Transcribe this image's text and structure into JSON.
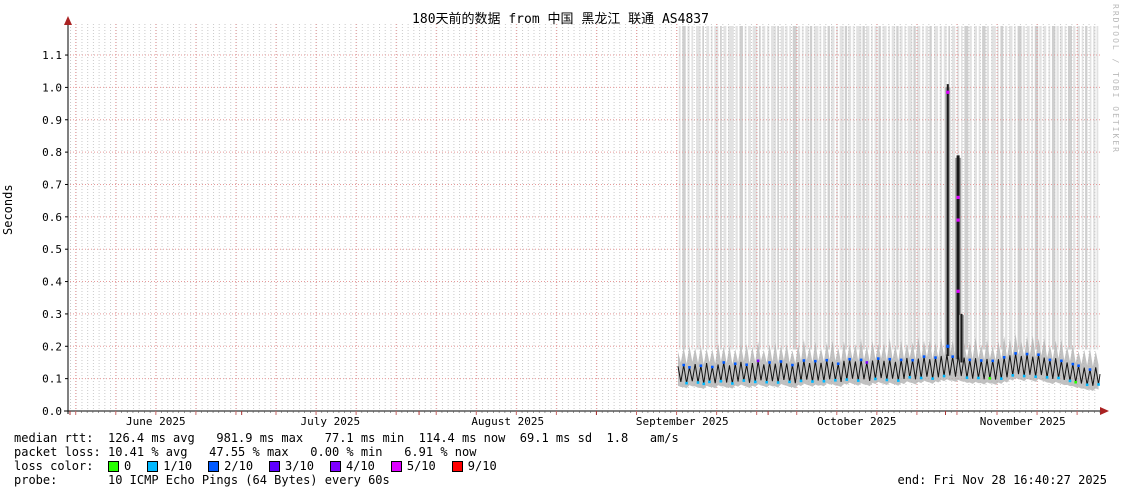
{
  "title": "180天前的数据 from 中国 黑龙江 联通 AS4837",
  "watermark": "RRDTOOL / TOBI OETIKER",
  "ylabel": "Seconds",
  "legend": {
    "median_label": "median rtt:",
    "median_stats": "126.4 ms avg   981.9 ms max   77.1 ms min  114.4 ms now  69.1 ms sd  1.8   am/s",
    "loss_label": "packet loss:",
    "loss_stats": "10.41 % avg   47.55 % max   0.00 % min   6.91 % now",
    "loss_color_label": "loss color:",
    "loss_colors": [
      {
        "color": "#26ff00",
        "label": "0"
      },
      {
        "color": "#00b8ff",
        "label": "1/10"
      },
      {
        "color": "#0059ff",
        "label": "2/10"
      },
      {
        "color": "#5e00ff",
        "label": "3/10"
      },
      {
        "color": "#7e00ff",
        "label": "4/10"
      },
      {
        "color": "#dd00ff",
        "label": "5/10"
      },
      {
        "color": "#ff0000",
        "label": "9/10"
      }
    ],
    "probe_label": "probe:",
    "probe_value": "10 ICMP Echo Pings (64 Bytes) every 60s",
    "end_label": "end: Fri Nov 28 16:40:27 2025"
  },
  "chart_data": {
    "type": "line",
    "title": "180天前的数据 from 中国 黑龙江 联通 AS4837",
    "xlabel": "",
    "ylabel": "Seconds",
    "ylim": [
      0.0,
      1.196
    ],
    "yticks": [
      0.0,
      0.1,
      0.2,
      0.3,
      0.4,
      0.5,
      0.6,
      0.7,
      0.8,
      0.9,
      1.0,
      1.1
    ],
    "grid": true,
    "stats": {
      "median_avg_ms": 126.4,
      "median_max_ms": 981.9,
      "median_min_ms": 77.1,
      "median_now_ms": 114.4,
      "sd_ms": 69.1,
      "rate_am_s": 1.8,
      "loss_avg_pct": 10.41,
      "loss_max_pct": 47.55,
      "loss_min_pct": 0.0,
      "loss_now_pct": 6.91
    },
    "x_axis": {
      "start_day": 0,
      "end_day": 180,
      "week_start_day": 1,
      "week_step": 7,
      "month_start_days": [
        0,
        30,
        61,
        92,
        122,
        153
      ],
      "months": [
        {
          "label": "June 2025",
          "mid": 15
        },
        {
          "label": "July 2025",
          "mid": 45.5
        },
        {
          "label": "August 2025",
          "mid": 76.5
        },
        {
          "label": "September 2025",
          "mid": 107
        },
        {
          "label": "October 2025",
          "mid": 137.5
        },
        {
          "label": "November 2025",
          "mid": 166.5
        }
      ]
    },
    "palette": [
      "#26ff00",
      "#00b8ff",
      "#0059ff",
      "#5e00ff",
      "#7e00ff",
      "#dd00ff",
      "#ff0000"
    ],
    "median_now_s": 0.114,
    "daily": {
      "start": 106,
      "values": [
        [
          0.138,
          0.09
        ],
        [
          0.142,
          0.086
        ],
        [
          0.135,
          0.092
        ],
        [
          0.145,
          0.088
        ],
        [
          0.14,
          0.084
        ],
        [
          0.148,
          0.09
        ],
        [
          0.136,
          0.086
        ],
        [
          0.144,
          0.092
        ],
        [
          0.15,
          0.088
        ],
        [
          0.141,
          0.085
        ],
        [
          0.146,
          0.091
        ],
        [
          0.152,
          0.094
        ],
        [
          0.143,
          0.087
        ],
        [
          0.148,
          0.09
        ],
        [
          0.155,
          0.095
        ],
        [
          0.144,
          0.089
        ],
        [
          0.15,
          0.092
        ],
        [
          0.146,
          0.088
        ],
        [
          0.153,
          0.096
        ],
        [
          0.147,
          0.09
        ],
        [
          0.142,
          0.086
        ],
        [
          0.151,
          0.093
        ],
        [
          0.156,
          0.097
        ],
        [
          0.148,
          0.091
        ],
        [
          0.154,
          0.094
        ],
        [
          0.149,
          0.092
        ],
        [
          0.157,
          0.098
        ],
        [
          0.152,
          0.095
        ],
        [
          0.146,
          0.09
        ],
        [
          0.155,
          0.097
        ],
        [
          0.16,
          0.1
        ],
        [
          0.153,
          0.094
        ],
        [
          0.158,
          0.098
        ],
        [
          0.15,
          0.093
        ],
        [
          0.156,
          0.099
        ],
        [
          0.162,
          0.102
        ],
        [
          0.155,
          0.096
        ],
        [
          0.16,
          0.1
        ],
        [
          0.152,
          0.094
        ],
        [
          0.158,
          0.099
        ],
        [
          0.164,
          0.104
        ],
        [
          0.157,
          0.098
        ],
        [
          0.162,
          0.102
        ],
        [
          0.168,
          0.106
        ],
        [
          0.16,
          0.1
        ],
        [
          0.165,
          0.104
        ],
        [
          0.17,
          0.108
        ],
        [
          0.175,
          0.11
        ],
        [
          0.168,
          0.106
        ],
        [
          0.172,
          0.108
        ],
        [
          0.165,
          0.103
        ],
        [
          0.158,
          0.1
        ],
        [
          0.163,
          0.102
        ],
        [
          0.156,
          0.098
        ],
        [
          0.161,
          0.101
        ],
        [
          0.155,
          0.097
        ],
        [
          0.16,
          0.1
        ],
        [
          0.166,
          0.104
        ],
        [
          0.172,
          0.11
        ],
        [
          0.178,
          0.114
        ],
        [
          0.17,
          0.108
        ],
        [
          0.176,
          0.112
        ],
        [
          0.168,
          0.106
        ],
        [
          0.174,
          0.111
        ],
        [
          0.165,
          0.104
        ],
        [
          0.158,
          0.099
        ],
        [
          0.163,
          0.102
        ],
        [
          0.155,
          0.096
        ],
        [
          0.15,
          0.093
        ],
        [
          0.145,
          0.089
        ],
        [
          0.14,
          0.085
        ],
        [
          0.134,
          0.081
        ],
        [
          0.128,
          0.078
        ],
        [
          0.135,
          0.082
        ]
      ]
    },
    "loss_bars": [
      [
        106.4,
        0.3
      ],
      [
        107.0,
        0.6
      ],
      [
        107.9,
        0.4
      ],
      [
        108.6,
        0.3
      ],
      [
        109.4,
        0.8
      ],
      [
        110.5,
        0.3
      ],
      [
        111.2,
        0.5
      ],
      [
        112.0,
        0.3
      ],
      [
        112.6,
        0.7
      ],
      [
        113.6,
        0.3
      ],
      [
        114.2,
        0.5
      ],
      [
        115.0,
        1.0
      ],
      [
        116.3,
        0.4
      ],
      [
        117.0,
        0.6
      ],
      [
        117.9,
        0.3
      ],
      [
        118.5,
        0.5
      ],
      [
        119.3,
        0.8
      ],
      [
        120.4,
        0.3
      ],
      [
        121.0,
        0.5
      ],
      [
        121.8,
        0.4
      ],
      [
        122.5,
        0.9
      ],
      [
        123.6,
        0.3
      ],
      [
        124.2,
        0.6
      ],
      [
        125.0,
        0.4
      ],
      [
        125.7,
        0.3
      ],
      [
        126.3,
        0.7
      ],
      [
        127.2,
        0.4
      ],
      [
        127.9,
        0.3
      ],
      [
        128.5,
        0.6
      ],
      [
        129.3,
        0.4
      ],
      [
        130.0,
        0.8
      ],
      [
        131.0,
        0.3
      ],
      [
        131.6,
        0.5
      ],
      [
        132.4,
        0.4
      ],
      [
        133.0,
        0.6
      ],
      [
        133.9,
        0.3
      ],
      [
        134.5,
        0.7
      ],
      [
        135.4,
        0.4
      ],
      [
        136.0,
        0.5
      ],
      [
        136.8,
        0.3
      ],
      [
        137.4,
        0.9
      ],
      [
        138.5,
        0.4
      ],
      [
        139.1,
        0.6
      ],
      [
        140.0,
        0.3
      ],
      [
        140.6,
        0.5
      ],
      [
        141.3,
        0.4
      ],
      [
        142.0,
        0.7
      ],
      [
        143.0,
        0.3
      ],
      [
        143.6,
        0.6
      ],
      [
        144.4,
        0.4
      ],
      [
        145.0,
        0.5
      ],
      [
        145.8,
        0.3
      ],
      [
        146.4,
        0.8
      ],
      [
        147.4,
        0.4
      ],
      [
        148.0,
        0.6
      ],
      [
        148.9,
        0.3
      ],
      [
        149.5,
        0.5
      ],
      [
        150.2,
        0.4
      ],
      [
        151.0,
        0.7
      ],
      [
        152.0,
        0.4
      ],
      [
        152.7,
        0.5
      ],
      [
        153.5,
        0.3
      ],
      [
        154.1,
        0.6
      ],
      [
        155.0,
        0.4
      ],
      [
        155.7,
        0.3
      ],
      [
        156.3,
        0.7
      ],
      [
        157.2,
        0.4
      ],
      [
        158.0,
        0.5
      ],
      [
        158.8,
        0.3
      ],
      [
        159.4,
        0.6
      ],
      [
        160.2,
        0.4
      ],
      [
        161.0,
        0.8
      ],
      [
        162.0,
        0.3
      ],
      [
        162.6,
        0.5
      ],
      [
        163.4,
        0.4
      ],
      [
        164.1,
        0.6
      ],
      [
        165.0,
        0.3
      ],
      [
        165.6,
        0.7
      ],
      [
        166.5,
        0.4
      ],
      [
        167.2,
        0.5
      ],
      [
        168.0,
        0.3
      ],
      [
        168.6,
        0.6
      ],
      [
        169.4,
        0.4
      ],
      [
        170.1,
        0.5
      ],
      [
        171.0,
        0.3
      ],
      [
        171.6,
        0.6
      ],
      [
        172.4,
        0.4
      ],
      [
        173.0,
        0.5
      ],
      [
        173.8,
        0.3
      ],
      [
        174.4,
        0.7
      ],
      [
        175.3,
        0.4
      ],
      [
        176.0,
        0.5
      ],
      [
        176.8,
        0.3
      ],
      [
        177.4,
        0.4
      ],
      [
        178.2,
        0.3
      ],
      [
        178.8,
        0.4
      ],
      [
        179.4,
        0.3
      ]
    ],
    "spikes": [
      {
        "day": 153.4,
        "value": 1.01,
        "base": 0.17,
        "width": 2,
        "dots": [
          {
            "v": 0.985,
            "c": 5
          },
          {
            "v": 0.2,
            "c": 2
          }
        ]
      },
      {
        "day": 155.2,
        "value": 0.79,
        "base": 0.16,
        "width": 3,
        "dots": [
          {
            "v": 0.66,
            "c": 5
          },
          {
            "v": 0.59,
            "c": 5
          },
          {
            "v": 0.37,
            "c": 5
          }
        ]
      },
      {
        "day": 155.8,
        "value": 0.3,
        "base": 0.15,
        "width": 2,
        "dots": []
      }
    ],
    "loss_dots": [
      [
        107,
        0,
        2
      ],
      [
        107,
        1,
        1
      ],
      [
        108,
        0,
        2
      ],
      [
        109,
        1,
        1
      ],
      [
        110,
        0,
        2
      ],
      [
        110,
        1,
        1
      ],
      [
        111,
        1,
        1
      ],
      [
        112,
        0,
        2
      ],
      [
        113,
        1,
        1
      ],
      [
        114,
        0,
        2
      ],
      [
        115,
        1,
        1
      ],
      [
        116,
        0,
        2
      ],
      [
        117,
        1,
        1
      ],
      [
        118,
        0,
        2
      ],
      [
        119,
        1,
        1
      ],
      [
        120,
        0,
        4
      ],
      [
        121,
        1,
        1
      ],
      [
        122,
        0,
        2
      ],
      [
        123,
        1,
        1
      ],
      [
        124,
        0,
        2
      ],
      [
        125,
        1,
        1
      ],
      [
        126,
        0,
        2
      ],
      [
        127,
        1,
        1
      ],
      [
        128,
        0,
        2
      ],
      [
        129,
        1,
        1
      ],
      [
        130,
        0,
        2
      ],
      [
        131,
        1,
        1
      ],
      [
        132,
        0,
        2
      ],
      [
        133,
        1,
        1
      ],
      [
        134,
        0,
        2
      ],
      [
        135,
        1,
        1
      ],
      [
        136,
        0,
        2
      ],
      [
        137,
        1,
        1
      ],
      [
        138,
        0,
        2
      ],
      [
        139,
        0,
        4
      ],
      [
        140,
        1,
        1
      ],
      [
        141,
        0,
        2
      ],
      [
        142,
        1,
        1
      ],
      [
        143,
        0,
        2
      ],
      [
        144,
        1,
        1
      ],
      [
        145,
        0,
        2
      ],
      [
        146,
        1,
        1
      ],
      [
        147,
        0,
        2
      ],
      [
        148,
        1,
        1
      ],
      [
        149,
        0,
        2
      ],
      [
        150,
        1,
        1
      ],
      [
        151,
        0,
        2
      ],
      [
        152,
        1,
        1
      ],
      [
        154,
        0,
        2
      ],
      [
        156,
        1,
        1
      ],
      [
        157,
        0,
        2
      ],
      [
        158,
        1,
        1
      ],
      [
        159,
        0,
        2
      ],
      [
        160,
        1,
        0
      ],
      [
        161,
        0,
        2
      ],
      [
        162,
        1,
        1
      ],
      [
        163,
        0,
        2
      ],
      [
        164,
        1,
        1
      ],
      [
        165,
        0,
        2
      ],
      [
        166,
        1,
        1
      ],
      [
        167,
        0,
        2
      ],
      [
        168,
        1,
        1
      ],
      [
        169,
        0,
        2
      ],
      [
        170,
        1,
        1
      ],
      [
        171,
        0,
        2
      ],
      [
        172,
        1,
        1
      ],
      [
        173,
        0,
        2
      ],
      [
        174,
        1,
        1
      ],
      [
        175,
        0,
        2
      ],
      [
        175,
        1,
        0
      ],
      [
        176,
        0,
        2
      ],
      [
        177,
        1,
        1
      ],
      [
        178,
        0,
        2
      ],
      [
        179,
        1,
        1
      ]
    ]
  }
}
